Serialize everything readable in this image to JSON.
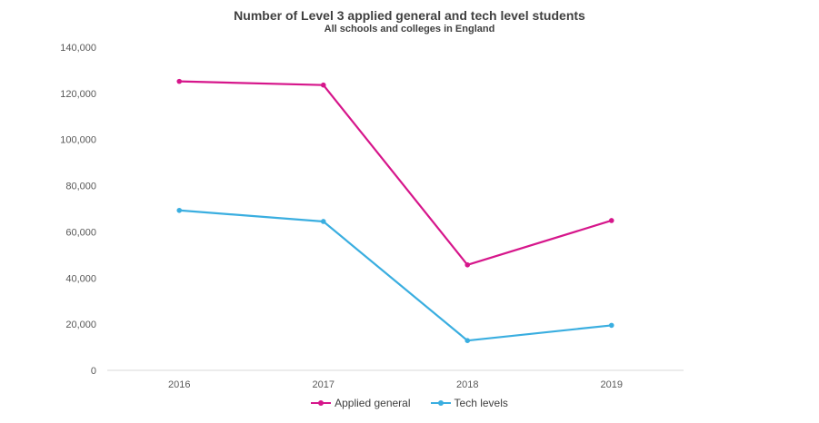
{
  "chart_data": {
    "type": "line",
    "title": "Number of Level 3 applied general and tech level students",
    "subtitle": "All schools and colleges in England",
    "categories": [
      "2016",
      "2017",
      "2018",
      "2019"
    ],
    "series": [
      {
        "name": "Applied general",
        "color": "#d6168b",
        "values": [
          125200,
          123600,
          45700,
          64900
        ]
      },
      {
        "name": "Tech levels",
        "color": "#3aaee0",
        "values": [
          69300,
          64500,
          12900,
          19500
        ]
      }
    ],
    "ylim": [
      0,
      140000
    ],
    "yticks": [
      0,
      20000,
      40000,
      60000,
      80000,
      100000,
      120000,
      140000
    ],
    "ytick_labels": [
      "0",
      "20,000",
      "40,000",
      "60,000",
      "80,000",
      "100,000",
      "120,000",
      "140,000"
    ],
    "grid": false,
    "legend_position": "bottom"
  }
}
